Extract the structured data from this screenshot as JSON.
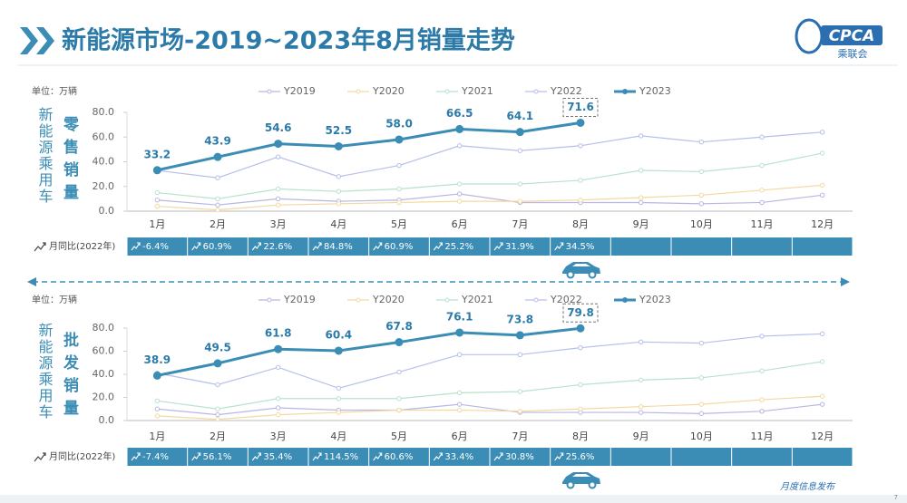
{
  "header": {
    "title": "新能源市场-2019~2023年8月销量走势",
    "logo": "CPCA",
    "logo_sub": "乘联会"
  },
  "chart_data": [
    {
      "type": "line",
      "unit": "单位：万辆",
      "side_label": "新能源乘用车",
      "title": "零售销量",
      "categories": [
        "1月",
        "2月",
        "3月",
        "4月",
        "5月",
        "6月",
        "7月",
        "8月",
        "9月",
        "10月",
        "11月",
        "12月"
      ],
      "ylim": [
        0,
        80
      ],
      "yticks": [
        {
          "value": 0,
          "label": "0.0"
        },
        {
          "value": 20,
          "label": "20.0"
        },
        {
          "value": 40,
          "label": "40.0"
        },
        {
          "value": 60,
          "label": "60.0"
        },
        {
          "value": 80,
          "label": "80.0"
        }
      ],
      "series": [
        {
          "name": "Y2019",
          "color": "#b9b6e2",
          "values": [
            9,
            5,
            10,
            8,
            9,
            14,
            7,
            7,
            7,
            6,
            7,
            13
          ]
        },
        {
          "name": "Y2020",
          "color": "#f3d9a0",
          "values": [
            4,
            1,
            5,
            6,
            7,
            8,
            8,
            9,
            11,
            13,
            17,
            21
          ]
        },
        {
          "name": "Y2021",
          "color": "#b9e2cc",
          "values": [
            15,
            10,
            18,
            16,
            18,
            22,
            22,
            25,
            33,
            32,
            37,
            47
          ]
        },
        {
          "name": "Y2022",
          "color": "#b7bfe9",
          "values": [
            33,
            27,
            44,
            28,
            37,
            53,
            49,
            53,
            61,
            56,
            60,
            64
          ]
        },
        {
          "name": "Y2023",
          "color": "#3b8db5",
          "values": [
            33.2,
            43.9,
            54.6,
            52.5,
            58.0,
            66.5,
            64.1,
            71.6,
            null,
            null,
            null,
            null
          ],
          "value_labels": [
            "33.2",
            "43.9",
            "54.6",
            "52.5",
            "58.0",
            "66.5",
            "64.1",
            "71.6",
            null,
            null,
            null,
            null
          ]
        }
      ],
      "yoy_title": "月同比(2022年)",
      "yoy": [
        "-6.4%",
        "60.9%",
        "22.6%",
        "84.8%",
        "60.9%",
        "25.2%",
        "31.9%",
        "34.5%"
      ]
    },
    {
      "type": "line",
      "unit": "单位：万辆",
      "side_label": "新能源乘用车",
      "title": "批发销量",
      "categories": [
        "1月",
        "2月",
        "3月",
        "4月",
        "5月",
        "6月",
        "7月",
        "8月",
        "9月",
        "10月",
        "11月",
        "12月"
      ],
      "ylim": [
        0,
        80
      ],
      "yticks": [
        {
          "value": 0,
          "label": "0.0"
        },
        {
          "value": 20,
          "label": "20.0"
        },
        {
          "value": 40,
          "label": "40.0"
        },
        {
          "value": 60,
          "label": "60.0"
        },
        {
          "value": 80,
          "label": "80.0"
        }
      ],
      "series": [
        {
          "name": "Y2019",
          "color": "#b9b6e2",
          "values": [
            10,
            5,
            11,
            9,
            9,
            14,
            7,
            7,
            7,
            6,
            8,
            14
          ]
        },
        {
          "name": "Y2020",
          "color": "#f3d9a0",
          "values": [
            4,
            1,
            5,
            7,
            9,
            9,
            8,
            10,
            12,
            14,
            18,
            21
          ]
        },
        {
          "name": "Y2021",
          "color": "#b9e2cc",
          "values": [
            17,
            10,
            19,
            19,
            19,
            24,
            25,
            31,
            35,
            37,
            43,
            51
          ]
        },
        {
          "name": "Y2022",
          "color": "#b7bfe9",
          "values": [
            41,
            31,
            46,
            28,
            42,
            57,
            57,
            63,
            68,
            67,
            73,
            75
          ]
        },
        {
          "name": "Y2023",
          "color": "#3b8db5",
          "values": [
            38.9,
            49.5,
            61.8,
            60.4,
            67.8,
            76.1,
            73.8,
            79.8,
            null,
            null,
            null,
            null
          ],
          "value_labels": [
            "38.9",
            "49.5",
            "61.8",
            "60.4",
            "67.8",
            "76.1",
            "73.8",
            "79.8",
            null,
            null,
            null,
            null
          ]
        }
      ],
      "yoy_title": "月同比(2022年)",
      "yoy": [
        "-7.4%",
        "56.1%",
        "35.4%",
        "114.5%",
        "60.6%",
        "33.4%",
        "30.8%",
        "25.6%"
      ]
    }
  ],
  "footer": {
    "text": "月度信息发布",
    "page": "7"
  }
}
